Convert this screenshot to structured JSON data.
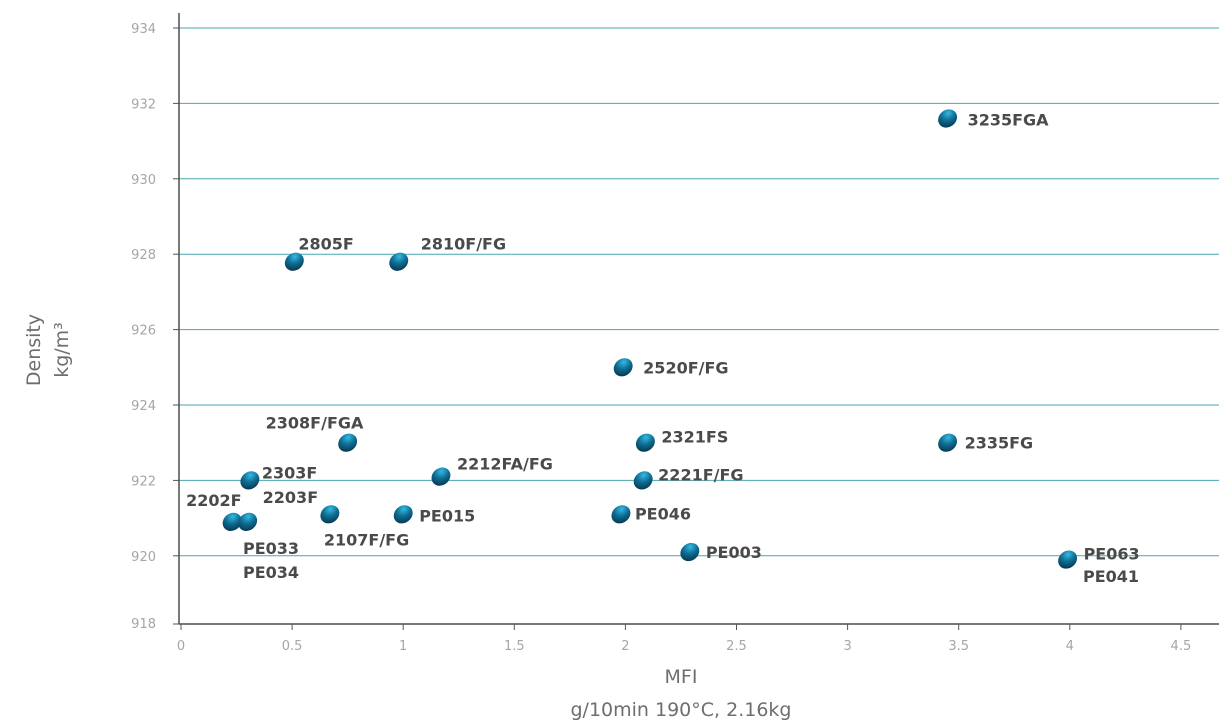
{
  "chart_data": {
    "type": "scatter",
    "title": "",
    "xlabel": "MFI",
    "xlabel_sub": "g/10min 190°C, 2.16kg",
    "ylabel": "Density",
    "ylabel_sub": "kg/m³",
    "xlim": [
      0,
      4.5
    ],
    "ylim": [
      918,
      934
    ],
    "x_ticks": [
      "0",
      "0.5",
      "1",
      "1.5",
      "2",
      "2.5",
      "3",
      "3.5",
      "4",
      "4.5"
    ],
    "y_ticks": [
      "918",
      "920",
      "922",
      "924",
      "926",
      "928",
      "930",
      "932",
      "934"
    ],
    "grid": "horizontal",
    "points": [
      {
        "label": "3235FGA",
        "x": 3.45,
        "y": 931.6
      },
      {
        "label": "2805F",
        "x": 0.51,
        "y": 927.8
      },
      {
        "label": "2810F/FG",
        "x": 0.98,
        "y": 927.8
      },
      {
        "label": "2520F/FG",
        "x": 1.99,
        "y": 925.0
      },
      {
        "label": "2308F/FGA",
        "x": 0.75,
        "y": 923.0
      },
      {
        "label": "2321FS",
        "x": 2.09,
        "y": 923.0
      },
      {
        "label": "2335FG",
        "x": 3.45,
        "y": 923.0
      },
      {
        "label": "2303F",
        "x": 0.31,
        "y": 922.0
      },
      {
        "label": "2212FA/FG",
        "x": 1.17,
        "y": 922.1
      },
      {
        "label": "2221F/FG",
        "x": 2.08,
        "y": 922.0
      },
      {
        "label": "2202F",
        "x": 0.23,
        "y": 920.9
      },
      {
        "label": "2203F",
        "x": 0.3,
        "y": 920.9
      },
      {
        "label": "2107F/FG",
        "x": 0.67,
        "y": 921.1
      },
      {
        "label": "PE015",
        "x": 1.0,
        "y": 921.1
      },
      {
        "label": "PE046",
        "x": 1.98,
        "y": 921.1
      },
      {
        "label": "PE003",
        "x": 2.29,
        "y": 920.1
      },
      {
        "label": "PE063",
        "x": 3.99,
        "y": 919.9
      }
    ],
    "extra_labels": [
      "PE033",
      "PE034",
      "PE041"
    ]
  }
}
